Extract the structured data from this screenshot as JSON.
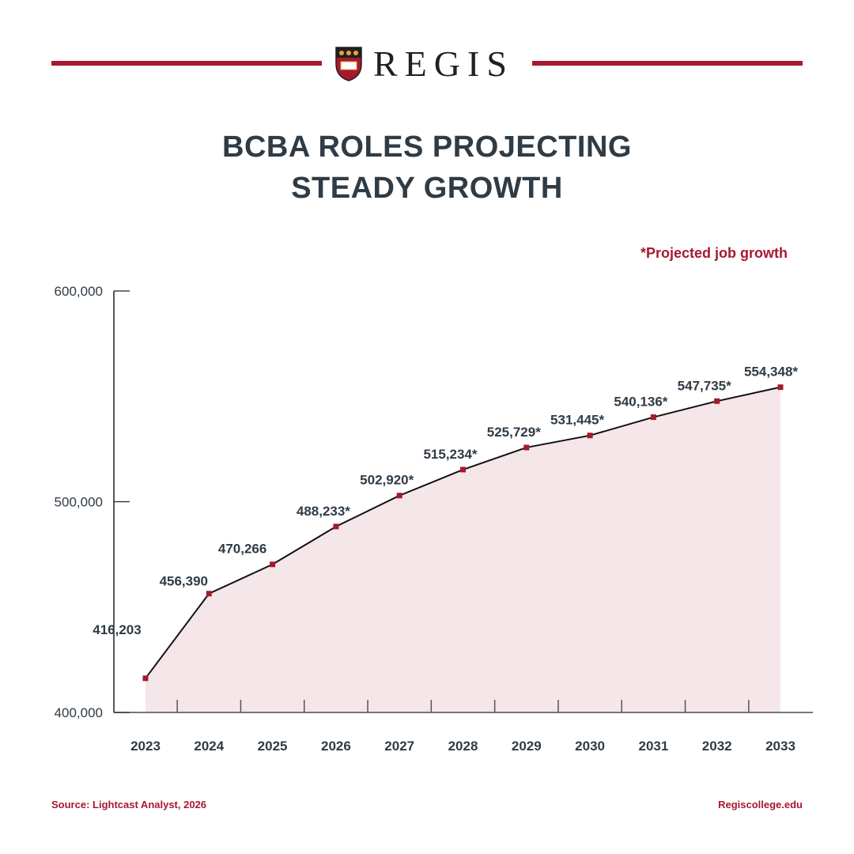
{
  "brand": {
    "name": "REGIS",
    "accent": "#a6192e"
  },
  "header": {
    "title_line1": "BCBA ROLES PROJECTING",
    "title_line2": "STEADY GROWTH"
  },
  "note": "*Projected job growth",
  "footer": {
    "source": "Source: Lightcast Analyst, 2026",
    "website": "Regiscollege.edu"
  },
  "chart_data": {
    "type": "area",
    "title": "BCBA ROLES PROJECTING STEADY GROWTH",
    "categories": [
      "2023",
      "2024",
      "2025",
      "2026",
      "2027",
      "2028",
      "2029",
      "2030",
      "2031",
      "2032",
      "2033"
    ],
    "values": [
      416203,
      456390,
      470266,
      488233,
      502920,
      515234,
      525729,
      531445,
      540136,
      547735,
      554348
    ],
    "data_labels": [
      "416,203",
      "456,390",
      "470,266",
      "488,233*",
      "502,920*",
      "515,234*",
      "525,729*",
      "531,445*",
      "540,136*",
      "547,735*",
      "554,348*"
    ],
    "ylim": [
      400000,
      600000
    ],
    "yticks": [
      "400,000",
      "500,000",
      "600,000"
    ],
    "ytick_values": [
      400000,
      500000,
      600000
    ],
    "grid": false,
    "colors": {
      "line": "#111111",
      "marker": "#a6192e",
      "fill": "#f5e6e9",
      "text": "#2f3b45"
    }
  }
}
